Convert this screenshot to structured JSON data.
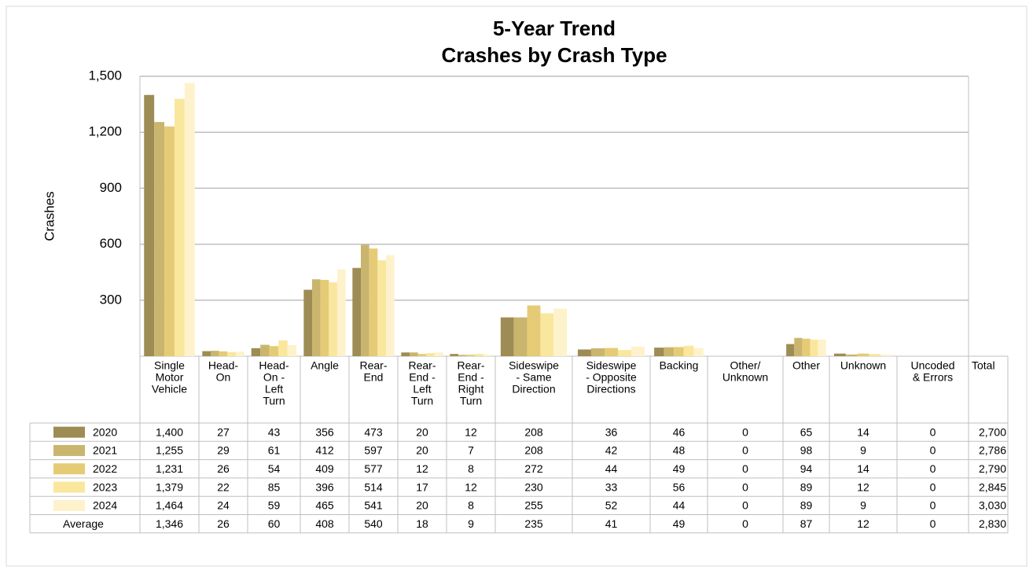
{
  "chart_data": {
    "type": "bar",
    "title": [
      "5-Year Trend",
      "Crashes by Crash Type"
    ],
    "y_label": "Crashes",
    "categories": [
      [
        "Single",
        "Motor",
        "Vehicle"
      ],
      [
        "Head-",
        "On"
      ],
      [
        "Head-",
        "On -",
        "Left",
        "Turn"
      ],
      [
        "Angle"
      ],
      [
        "Rear-",
        "End"
      ],
      [
        "Rear-",
        "End -",
        "Left",
        "Turn"
      ],
      [
        "Rear-",
        "End -",
        "Right",
        "Turn"
      ],
      [
        "Sideswipe",
        "- Same",
        "Direction"
      ],
      [
        "Sideswipe",
        "- Opposite",
        "Directions"
      ],
      [
        "Backing"
      ],
      [
        "Other/",
        "Unknown"
      ],
      [
        "Other"
      ],
      [
        "Unknown"
      ],
      [
        "Uncoded",
        "& Errors"
      ]
    ],
    "total_header": "Total",
    "ylim": [
      0,
      1500
    ],
    "yticks": [
      300,
      600,
      900,
      {
        "value": 1200,
        "label": "1,200"
      },
      {
        "value": 1500,
        "label": "1,500"
      }
    ],
    "grid": true,
    "series": [
      {
        "name": "2020",
        "color": "#9e8c55",
        "values": [
          1400,
          27,
          43,
          356,
          473,
          20,
          12,
          208,
          36,
          46,
          0,
          65,
          14,
          0
        ],
        "value_labels": [
          "1,400",
          "27",
          "43",
          "356",
          "473",
          "20",
          "12",
          "208",
          "36",
          "46",
          "0",
          "65",
          "14",
          "0"
        ],
        "total": "2,700"
      },
      {
        "name": "2021",
        "color": "#c9b56d",
        "values": [
          1255,
          29,
          61,
          412,
          597,
          20,
          7,
          208,
          42,
          48,
          0,
          98,
          9,
          0
        ],
        "value_labels": [
          "1,255",
          "29",
          "61",
          "412",
          "597",
          "20",
          "7",
          "208",
          "42",
          "48",
          "0",
          "98",
          "9",
          "0"
        ],
        "total": "2,786"
      },
      {
        "name": "2022",
        "color": "#e6cb76",
        "values": [
          1231,
          26,
          54,
          409,
          577,
          12,
          8,
          272,
          44,
          49,
          0,
          94,
          14,
          0
        ],
        "value_labels": [
          "1,231",
          "26",
          "54",
          "409",
          "577",
          "12",
          "8",
          "272",
          "44",
          "49",
          "0",
          "94",
          "14",
          "0"
        ],
        "total": "2,790"
      },
      {
        "name": "2023",
        "color": "#fae79e",
        "values": [
          1379,
          22,
          85,
          396,
          514,
          17,
          12,
          230,
          33,
          56,
          0,
          89,
          12,
          0
        ],
        "value_labels": [
          "1,379",
          "22",
          "85",
          "396",
          "514",
          "17",
          "12",
          "230",
          "33",
          "56",
          "0",
          "89",
          "12",
          "0"
        ],
        "total": "2,845"
      },
      {
        "name": "2024",
        "color": "#fef2cc",
        "values": [
          1464,
          24,
          59,
          465,
          541,
          20,
          8,
          255,
          52,
          44,
          0,
          89,
          9,
          0
        ],
        "value_labels": [
          "1,464",
          "24",
          "59",
          "465",
          "541",
          "20",
          "8",
          "255",
          "52",
          "44",
          "0",
          "89",
          "9",
          "0"
        ],
        "total": "3,030"
      }
    ],
    "average": {
      "name": "Average",
      "cells": [
        "1,346",
        "26",
        "60",
        "408",
        "540",
        "18",
        "9",
        "235",
        "41",
        "49",
        "0",
        "87",
        "12",
        "0"
      ],
      "total": "2,830"
    }
  }
}
